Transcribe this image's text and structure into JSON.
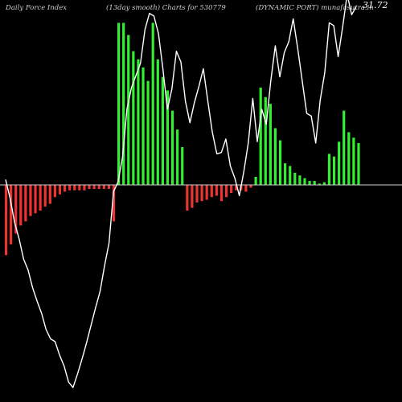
{
  "header": {
    "left": "Daily Force  Index",
    "center": "(13day smooth) Charts for 530779",
    "right": "(DYNAMIC PORT) munafasutra.in"
  },
  "colors": {
    "background": "#000000",
    "positive_bar": "#33ee33",
    "negative_bar": "#ee3333",
    "zero_line": "#cccccc",
    "smooth_line": "#ffffff"
  },
  "chart_data": {
    "type": "bar",
    "title": "",
    "xlabel": "",
    "ylabel": "",
    "ylim": [
      -150,
      125
    ],
    "zero": 0,
    "last_value_label": "31.72",
    "series": [
      {
        "type": "bar",
        "values": [
          -52,
          -44,
          -36,
          -30,
          -27,
          -23,
          -21,
          -19,
          -16,
          -14,
          -9,
          -7,
          -5,
          -4,
          -4,
          -4,
          -4,
          -3,
          -3,
          -3,
          -3,
          -3,
          -27,
          120,
          120,
          111,
          99,
          93,
          87,
          77,
          120,
          93,
          80,
          70,
          55,
          41,
          28,
          -19,
          -17,
          -13,
          -12,
          -11,
          -9,
          -8,
          -12,
          -9,
          -6,
          -4,
          -4,
          -5,
          -2,
          6,
          72,
          65,
          60,
          42,
          33,
          16,
          14,
          9,
          7,
          5,
          3,
          3,
          1,
          2,
          23,
          21,
          32,
          55,
          39,
          35,
          31
        ]
      },
      {
        "type": "line",
        "values": [
          4,
          -10,
          -28,
          -40,
          -55,
          -63,
          -76,
          -86,
          -95,
          -107,
          -114,
          -116,
          -126,
          -134,
          -146,
          -150,
          -140,
          -129,
          -117,
          -104,
          -91,
          -79,
          -60,
          -43,
          -5,
          2,
          20,
          56,
          72,
          81,
          90,
          115,
          127,
          125,
          112,
          86,
          56,
          71,
          99,
          91,
          62,
          46,
          61,
          73,
          86,
          62,
          39,
          23,
          24,
          34,
          14,
          5,
          -8,
          10,
          31,
          64,
          32,
          56,
          45,
          77,
          103,
          80,
          98,
          106,
          123,
          101,
          77,
          53,
          51,
          31,
          63,
          83,
          120,
          118,
          95,
          117,
          141,
          126,
          132
        ]
      }
    ]
  }
}
